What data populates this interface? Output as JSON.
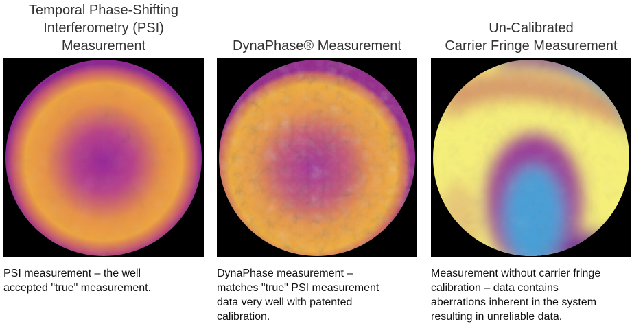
{
  "panels": [
    {
      "title_lines": [
        "Temporal Phase-Shifting",
        "Interferometry (PSI)",
        "Measurement"
      ],
      "caption_lines": [
        "PSI measurement – the well",
        "accepted \"true\" measurement."
      ]
    },
    {
      "title_lines": [
        "DynaPhase® Measurement"
      ],
      "caption_lines": [
        "DynaPhase measurement –",
        "matches \"true\" PSI measurement",
        "data very well with patented",
        "calibration."
      ]
    },
    {
      "title_lines": [
        "Un-Calibrated",
        "Carrier Fringe Measurement"
      ],
      "caption_lines": [
        "Measurement without carrier fringe",
        "calibration – data contains",
        "aberrations inherent in the system",
        "resulting in unreliable data."
      ]
    }
  ]
}
